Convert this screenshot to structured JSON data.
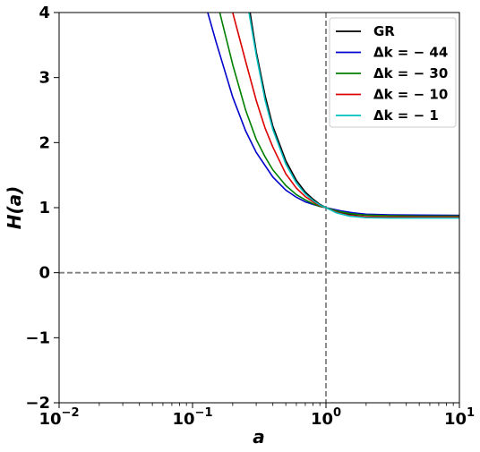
{
  "chart_data": {
    "type": "line",
    "title": "",
    "xlabel": "a",
    "ylabel": "H(a)",
    "xscale": "log",
    "xlim": [
      0.01,
      10
    ],
    "ylim": [
      -2,
      4
    ],
    "x_ticks": [
      {
        "value": 0.01,
        "base": "10",
        "exp": "−2"
      },
      {
        "value": 0.1,
        "base": "10",
        "exp": "−1"
      },
      {
        "value": 1,
        "base": "10",
        "exp": "0"
      },
      {
        "value": 10,
        "base": "10",
        "exp": "1"
      }
    ],
    "y_ticks": [
      {
        "value": -2,
        "label": "−2"
      },
      {
        "value": -1,
        "label": "−1"
      },
      {
        "value": 0,
        "label": "0"
      },
      {
        "value": 1,
        "label": "1"
      },
      {
        "value": 2,
        "label": "2"
      },
      {
        "value": 3,
        "label": "3"
      },
      {
        "value": 4,
        "label": "4"
      }
    ],
    "grid": false,
    "legend_position": "top-right",
    "reference_lines": [
      {
        "orientation": "vertical",
        "value": 1,
        "style": "dashed",
        "color": "#808080"
      },
      {
        "orientation": "horizontal",
        "value": 0,
        "style": "dashed",
        "color": "#808080"
      }
    ],
    "series": [
      {
        "name": "GR",
        "color": "#000000",
        "x": [
          0.27,
          0.3,
          0.35,
          0.4,
          0.5,
          0.6,
          0.7,
          0.8,
          0.9,
          1.0,
          1.2,
          1.5,
          2,
          3,
          5,
          10
        ],
        "y": [
          4.0,
          3.4,
          2.72,
          2.25,
          1.72,
          1.42,
          1.24,
          1.13,
          1.05,
          1.0,
          0.94,
          0.9,
          0.885,
          0.88,
          0.88,
          0.88
        ]
      },
      {
        "name": "Δk = − 44",
        "color": "#0000cc",
        "x": [
          0.13,
          0.15,
          0.2,
          0.25,
          0.3,
          0.4,
          0.5,
          0.6,
          0.7,
          0.8,
          0.9,
          1.0,
          1.3,
          1.6,
          2,
          3,
          5,
          10
        ],
        "y": [
          4.0,
          3.55,
          2.7,
          2.18,
          1.85,
          1.47,
          1.27,
          1.16,
          1.09,
          1.05,
          1.02,
          1.0,
          0.95,
          0.92,
          0.9,
          0.89,
          0.885,
          0.88
        ]
      },
      {
        "name": "Δk = − 30",
        "color": "#008000",
        "x": [
          0.16,
          0.2,
          0.25,
          0.3,
          0.35,
          0.4,
          0.5,
          0.6,
          0.7,
          0.8,
          0.9,
          1.0,
          1.2,
          1.5,
          2,
          3,
          5,
          10
        ],
        "y": [
          4.0,
          3.2,
          2.5,
          2.05,
          1.78,
          1.58,
          1.34,
          1.2,
          1.12,
          1.06,
          1.02,
          1.0,
          0.95,
          0.91,
          0.885,
          0.875,
          0.87,
          0.87
        ]
      },
      {
        "name": "Δk = − 10",
        "color": "#dd0000",
        "x": [
          0.2,
          0.25,
          0.3,
          0.35,
          0.4,
          0.5,
          0.6,
          0.7,
          0.8,
          0.9,
          1.0,
          1.2,
          1.5,
          2,
          3,
          5,
          10
        ],
        "y": [
          4.0,
          3.25,
          2.65,
          2.22,
          1.93,
          1.52,
          1.3,
          1.17,
          1.09,
          1.03,
          1.0,
          0.93,
          0.88,
          0.86,
          0.855,
          0.855,
          0.855
        ]
      },
      {
        "name": "Δk = − 1",
        "color": "#00bfbf",
        "x": [
          0.265,
          0.3,
          0.35,
          0.4,
          0.5,
          0.6,
          0.7,
          0.8,
          0.9,
          1.0,
          1.2,
          1.5,
          2,
          3,
          5,
          10
        ],
        "y": [
          4.0,
          3.35,
          2.65,
          2.2,
          1.67,
          1.38,
          1.21,
          1.11,
          1.04,
          1.0,
          0.92,
          0.87,
          0.845,
          0.84,
          0.84,
          0.84
        ]
      }
    ]
  }
}
